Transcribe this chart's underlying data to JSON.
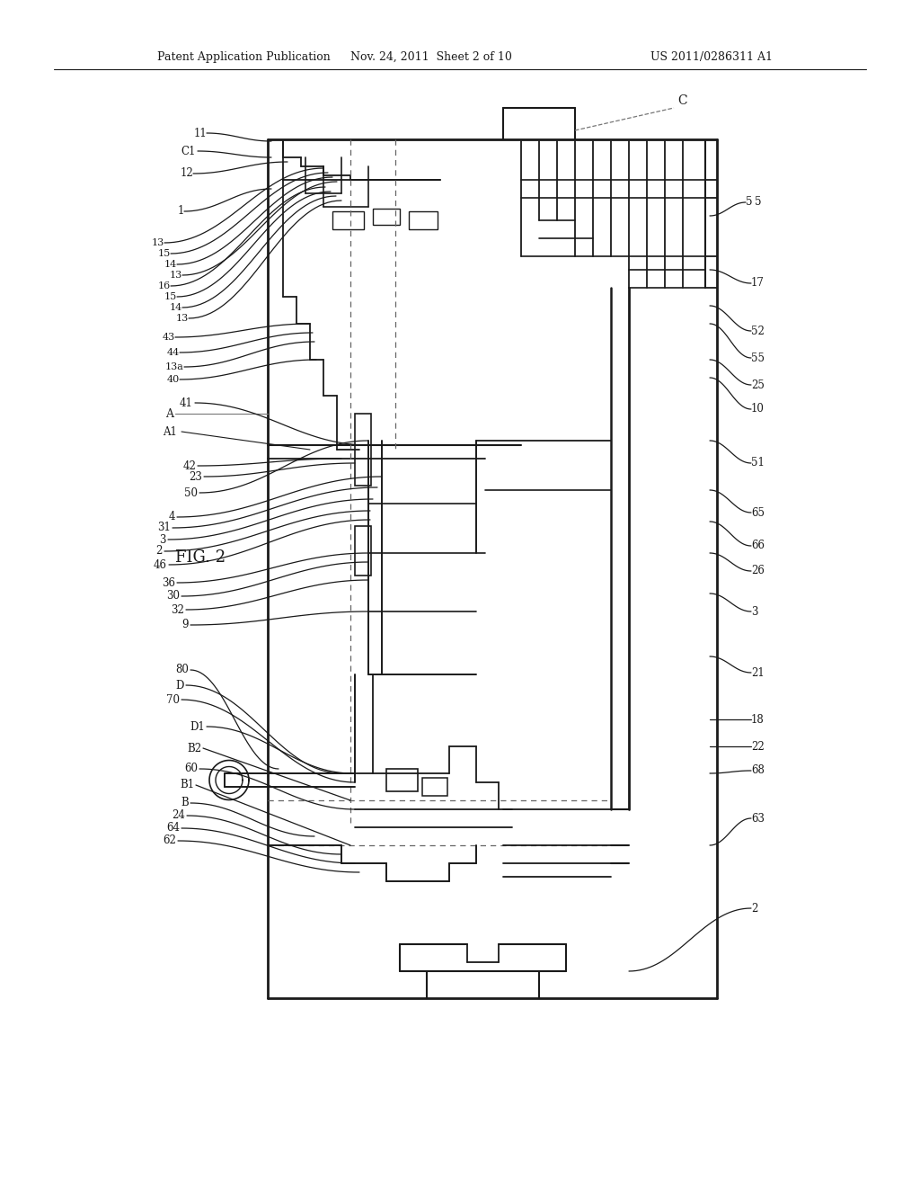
{
  "title_left": "Patent Application Publication",
  "title_center": "Nov. 24, 2011  Sheet 2 of 10",
  "title_right": "US 2011/0286311 A1",
  "fig_label": "FIG. 2",
  "background_color": "#ffffff",
  "line_color": "#1a1a1a",
  "dashed_color": "#555555"
}
